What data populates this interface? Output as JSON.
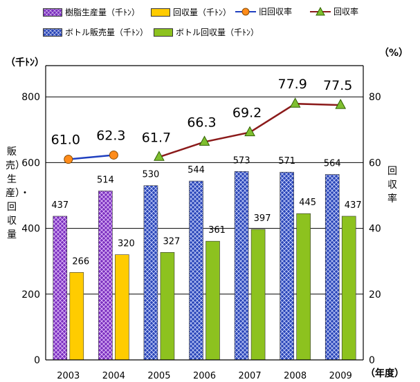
{
  "legend": {
    "items": [
      {
        "name": "樹脂生産量（千ﾄﾝ）",
        "kind": "bar",
        "fill": "#7b2fbf",
        "pattern": "purple"
      },
      {
        "name": "回収量（千ﾄﾝ）",
        "kind": "bar",
        "fill": "#ffcc00",
        "pattern": "solid"
      },
      {
        "name": "旧回収率",
        "kind": "line",
        "color": "#1f3fbf",
        "marker": "circle",
        "marker_color": "#ff8c1a"
      },
      {
        "name": "回収率",
        "kind": "line",
        "color": "#8b1a1a",
        "marker": "triangle",
        "marker_color": "#7fbf2f"
      },
      {
        "name": "ボトル販売量（千ﾄﾝ）",
        "kind": "bar",
        "fill": "#2a46b8",
        "pattern": "blue"
      },
      {
        "name": "ボトル回収量（千ﾄﾝ）",
        "kind": "bar",
        "fill": "#8dc21f",
        "pattern": "solid"
      }
    ]
  },
  "units": {
    "left": "（千ﾄﾝ）",
    "right": "（%）",
    "x": "（年度）"
  },
  "ylabel_left": "販売）生産）・回収量",
  "ylabel_right": "回収率",
  "chart_data": {
    "type": "bar",
    "categories": [
      "2003",
      "2004",
      "2005",
      "2006",
      "2007",
      "2008",
      "2009"
    ],
    "ylim": [
      0,
      1000
    ],
    "ylim_right": [
      0,
      100
    ],
    "y_ticks": [
      "0",
      "200",
      "400",
      "600",
      "800"
    ],
    "y_tick_values": [
      0,
      200,
      400,
      600,
      800
    ],
    "y2_ticks": [
      "0",
      "20",
      "40",
      "60",
      "80"
    ],
    "y2_tick_values": [
      0,
      20,
      40,
      60,
      80
    ],
    "series": [
      {
        "name": "樹脂生産量（千ﾄﾝ）",
        "axis": "left",
        "kind": "bar",
        "slot": 0,
        "values": [
          437,
          514,
          null,
          null,
          null,
          null,
          null
        ],
        "color": "#7b2fbf",
        "pattern": "purple"
      },
      {
        "name": "回収量（千ﾄﾝ）",
        "axis": "left",
        "kind": "bar",
        "slot": 1,
        "values": [
          266,
          320,
          null,
          null,
          null,
          null,
          null
        ],
        "color": "#ffcc00"
      },
      {
        "name": "ボトル販売量（千ﾄﾝ）",
        "axis": "left",
        "kind": "bar",
        "slot": 0,
        "values": [
          null,
          null,
          530,
          544,
          573,
          571,
          564
        ],
        "color": "#2a46b8",
        "pattern": "blue"
      },
      {
        "name": "ボトル回収量（千ﾄﾝ）",
        "axis": "left",
        "kind": "bar",
        "slot": 1,
        "values": [
          null,
          null,
          327,
          361,
          397,
          445,
          437
        ],
        "color": "#8dc21f"
      },
      {
        "name": "旧回収率",
        "axis": "right",
        "kind": "line",
        "values": [
          61.0,
          62.3,
          null,
          null,
          null,
          null,
          null
        ],
        "labels": [
          "61.0",
          "62.3",
          null,
          null,
          null,
          null,
          null
        ],
        "color": "#1f3fbf",
        "marker": "circle",
        "marker_color": "#ff8c1a"
      },
      {
        "name": "回収率",
        "axis": "right",
        "kind": "line",
        "values": [
          null,
          null,
          61.7,
          66.3,
          69.2,
          77.9,
          77.5
        ],
        "labels": [
          null,
          null,
          "61.7",
          "66.3",
          "69.2",
          "77.9",
          "77.5"
        ],
        "color": "#8b1a1a",
        "marker": "triangle",
        "marker_color": "#7fbf2f"
      }
    ],
    "grid": true
  }
}
